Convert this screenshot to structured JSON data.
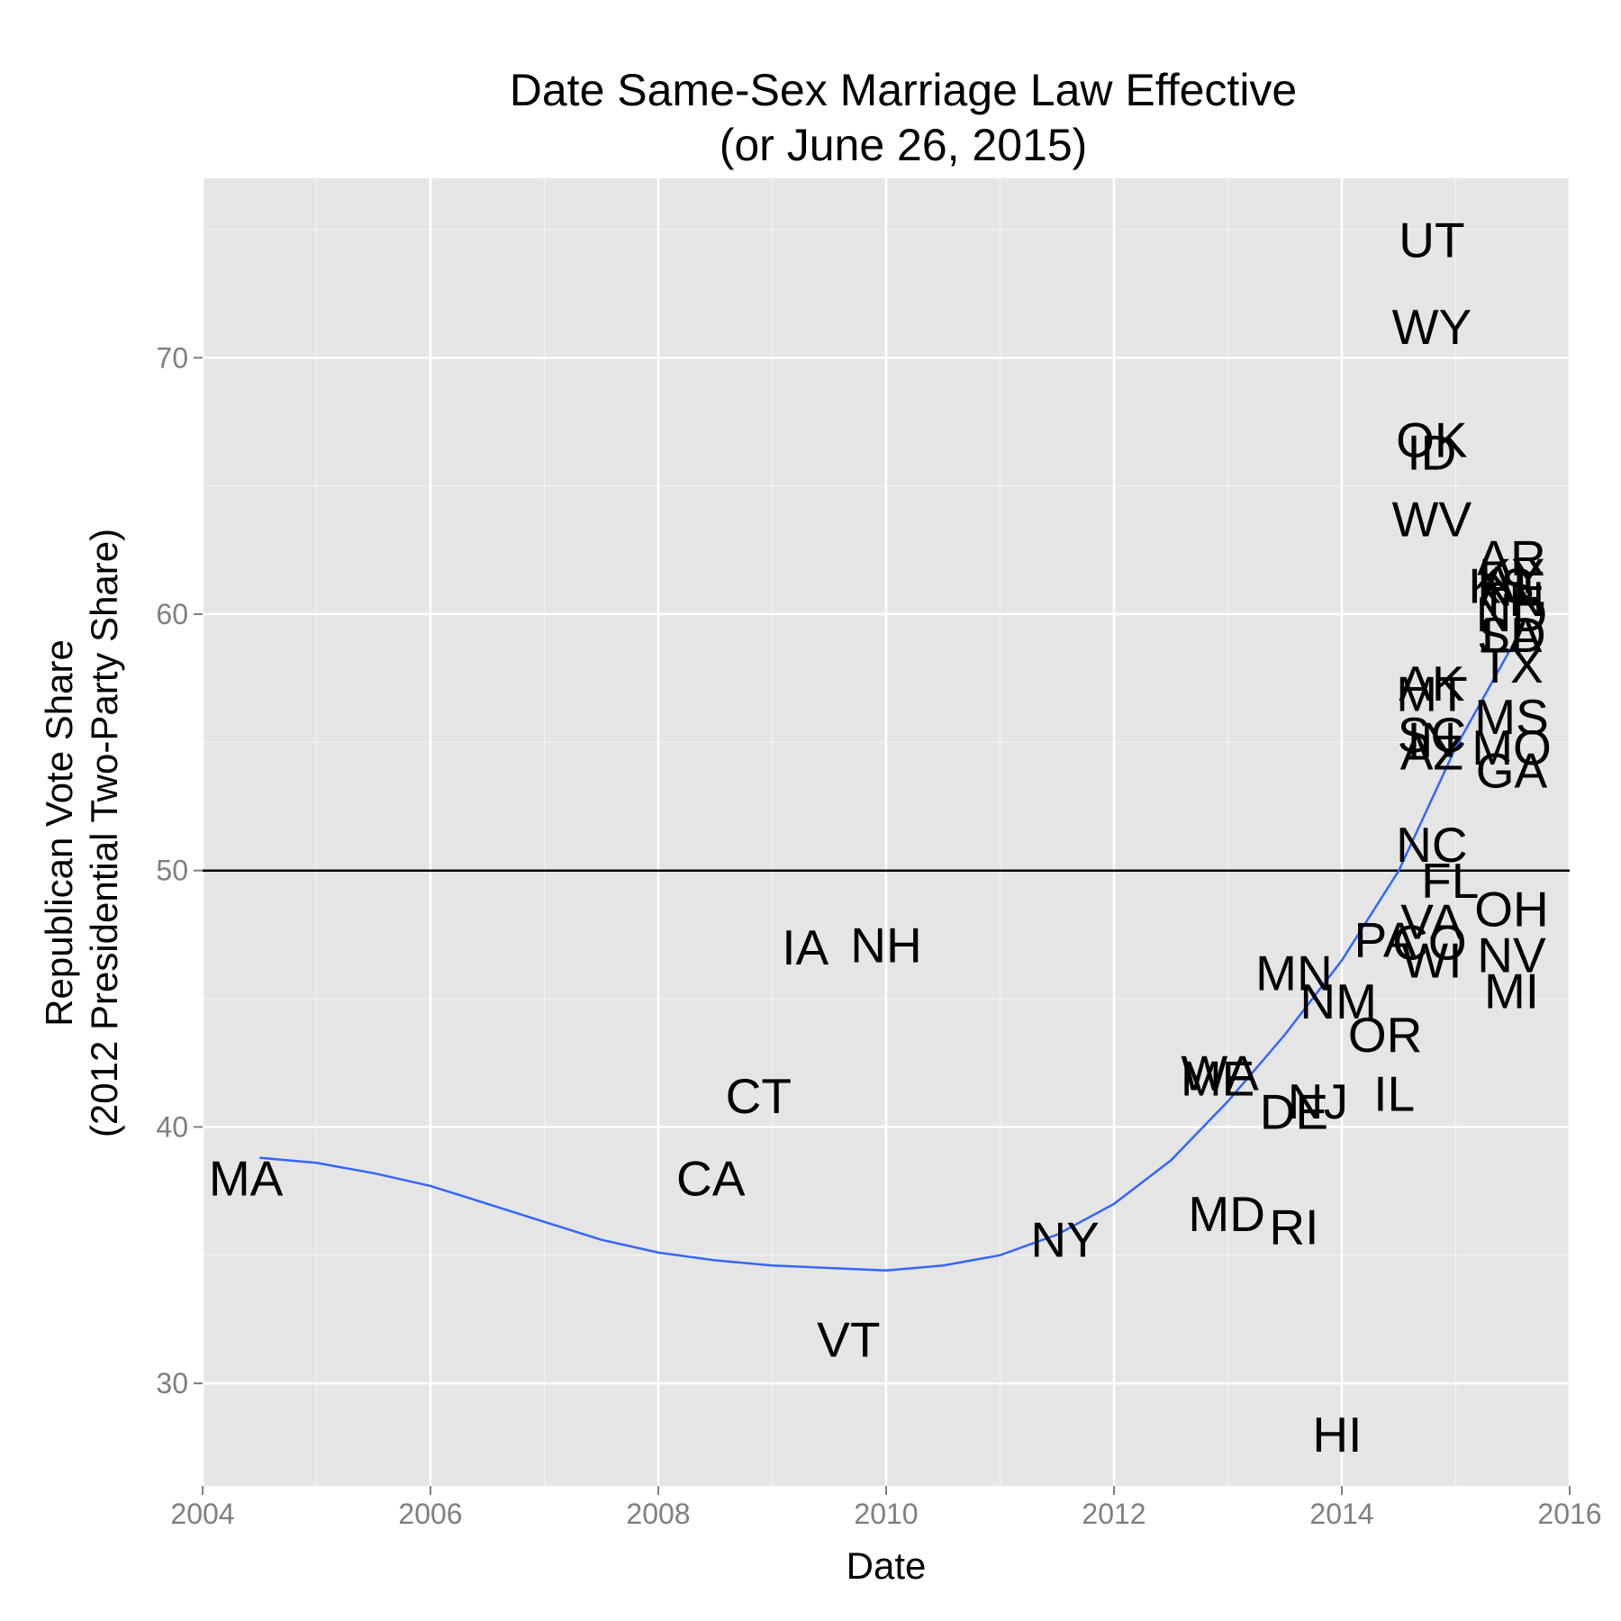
{
  "chart_data": {
    "type": "scatter",
    "title": [
      "Date Same-Sex Marriage Law Effective",
      "(or June 26, 2015)"
    ],
    "xlabel": "Date",
    "ylabel": [
      "Republican Vote Share",
      "(2012 Presidential Two-Party Share)"
    ],
    "xlim": [
      2004,
      2016
    ],
    "ylim": [
      26,
      77
    ],
    "x_ticks": [
      2004,
      2006,
      2008,
      2010,
      2012,
      2014,
      2016
    ],
    "y_ticks": [
      30,
      40,
      50,
      60,
      70
    ],
    "grid": true,
    "reference_line_y": 50,
    "colors": {
      "panel": "#e5e5e5",
      "grid": "#ffffff",
      "smooth": "#3366ff",
      "reference": "#000000"
    },
    "points": [
      {
        "label": "MA",
        "x": 2004.38,
        "y": 38.0
      },
      {
        "label": "CA",
        "x": 2008.46,
        "y": 38.0
      },
      {
        "label": "CT",
        "x": 2008.88,
        "y": 41.2
      },
      {
        "label": "IA",
        "x": 2009.29,
        "y": 47.0
      },
      {
        "label": "NH",
        "x": 2010.0,
        "y": 47.1
      },
      {
        "label": "VT",
        "x": 2009.67,
        "y": 31.7
      },
      {
        "label": "NY",
        "x": 2011.57,
        "y": 35.6
      },
      {
        "label": "WA",
        "x": 2012.93,
        "y": 42.1
      },
      {
        "label": "ME",
        "x": 2012.91,
        "y": 41.9
      },
      {
        "label": "MD",
        "x": 2012.99,
        "y": 36.6
      },
      {
        "label": "RI",
        "x": 2013.58,
        "y": 36.1
      },
      {
        "label": "DE",
        "x": 2013.58,
        "y": 40.6
      },
      {
        "label": "NJ",
        "x": 2013.79,
        "y": 41.0
      },
      {
        "label": "MN",
        "x": 2013.58,
        "y": 46.0
      },
      {
        "label": "NM",
        "x": 2013.97,
        "y": 44.9
      },
      {
        "label": "HI",
        "x": 2013.96,
        "y": 28.0
      },
      {
        "label": "IL",
        "x": 2014.46,
        "y": 41.3
      },
      {
        "label": "OR",
        "x": 2014.38,
        "y": 43.6
      },
      {
        "label": "PA",
        "x": 2014.38,
        "y": 47.3
      },
      {
        "label": "CO",
        "x": 2014.77,
        "y": 47.2
      },
      {
        "label": "UT",
        "x": 2014.79,
        "y": 74.6
      },
      {
        "label": "WY",
        "x": 2014.79,
        "y": 71.2
      },
      {
        "label": "OK",
        "x": 2014.79,
        "y": 66.8
      },
      {
        "label": "ID",
        "x": 2014.79,
        "y": 66.3
      },
      {
        "label": "WV",
        "x": 2014.79,
        "y": 63.7
      },
      {
        "label": "AK",
        "x": 2014.79,
        "y": 57.3
      },
      {
        "label": "MT",
        "x": 2014.79,
        "y": 56.9
      },
      {
        "label": "NC",
        "x": 2014.79,
        "y": 51.0
      },
      {
        "label": "IN",
        "x": 2014.79,
        "y": 55.1
      },
      {
        "label": "SC",
        "x": 2014.79,
        "y": 55.3
      },
      {
        "label": "AZ",
        "x": 2014.79,
        "y": 54.6
      },
      {
        "label": "VA",
        "x": 2014.79,
        "y": 48.0
      },
      {
        "label": "WI",
        "x": 2014.79,
        "y": 46.5
      },
      {
        "label": "FL",
        "x": 2014.95,
        "y": 49.6
      },
      {
        "label": "KS",
        "x": 2015.4,
        "y": 61.1
      },
      {
        "label": "AR",
        "x": 2015.49,
        "y": 62.2
      },
      {
        "label": "AL",
        "x": 2015.49,
        "y": 61.2
      },
      {
        "label": "KY",
        "x": 2015.49,
        "y": 61.5
      },
      {
        "label": "TN",
        "x": 2015.49,
        "y": 60.6
      },
      {
        "label": "NE",
        "x": 2015.49,
        "y": 61.0
      },
      {
        "label": "LA",
        "x": 2015.49,
        "y": 59.2
      },
      {
        "label": "ND",
        "x": 2015.49,
        "y": 60.0
      },
      {
        "label": "SD",
        "x": 2015.49,
        "y": 59.2
      },
      {
        "label": "TX",
        "x": 2015.49,
        "y": 58.0
      },
      {
        "label": "MS",
        "x": 2015.49,
        "y": 56.0
      },
      {
        "label": "MO",
        "x": 2015.49,
        "y": 54.8
      },
      {
        "label": "GA",
        "x": 2015.49,
        "y": 53.9
      },
      {
        "label": "OH",
        "x": 2015.49,
        "y": 48.5
      },
      {
        "label": "NV",
        "x": 2015.49,
        "y": 46.7
      },
      {
        "label": "MI",
        "x": 2015.49,
        "y": 45.3
      }
    ],
    "smooth_line": {
      "x": [
        2004.5,
        2005.0,
        2005.5,
        2006.0,
        2006.5,
        2007.0,
        2007.5,
        2008.0,
        2008.5,
        2009.0,
        2009.5,
        2010.0,
        2010.5,
        2011.0,
        2011.5,
        2012.0,
        2012.5,
        2013.0,
        2013.5,
        2014.0,
        2014.5,
        2015.0,
        2015.5
      ],
      "y": [
        38.8,
        38.6,
        38.2,
        37.7,
        37.0,
        36.3,
        35.6,
        35.1,
        34.8,
        34.6,
        34.5,
        34.4,
        34.6,
        35.0,
        35.8,
        37.0,
        38.7,
        41.0,
        43.6,
        46.5,
        50.0,
        54.8,
        58.8
      ]
    }
  }
}
